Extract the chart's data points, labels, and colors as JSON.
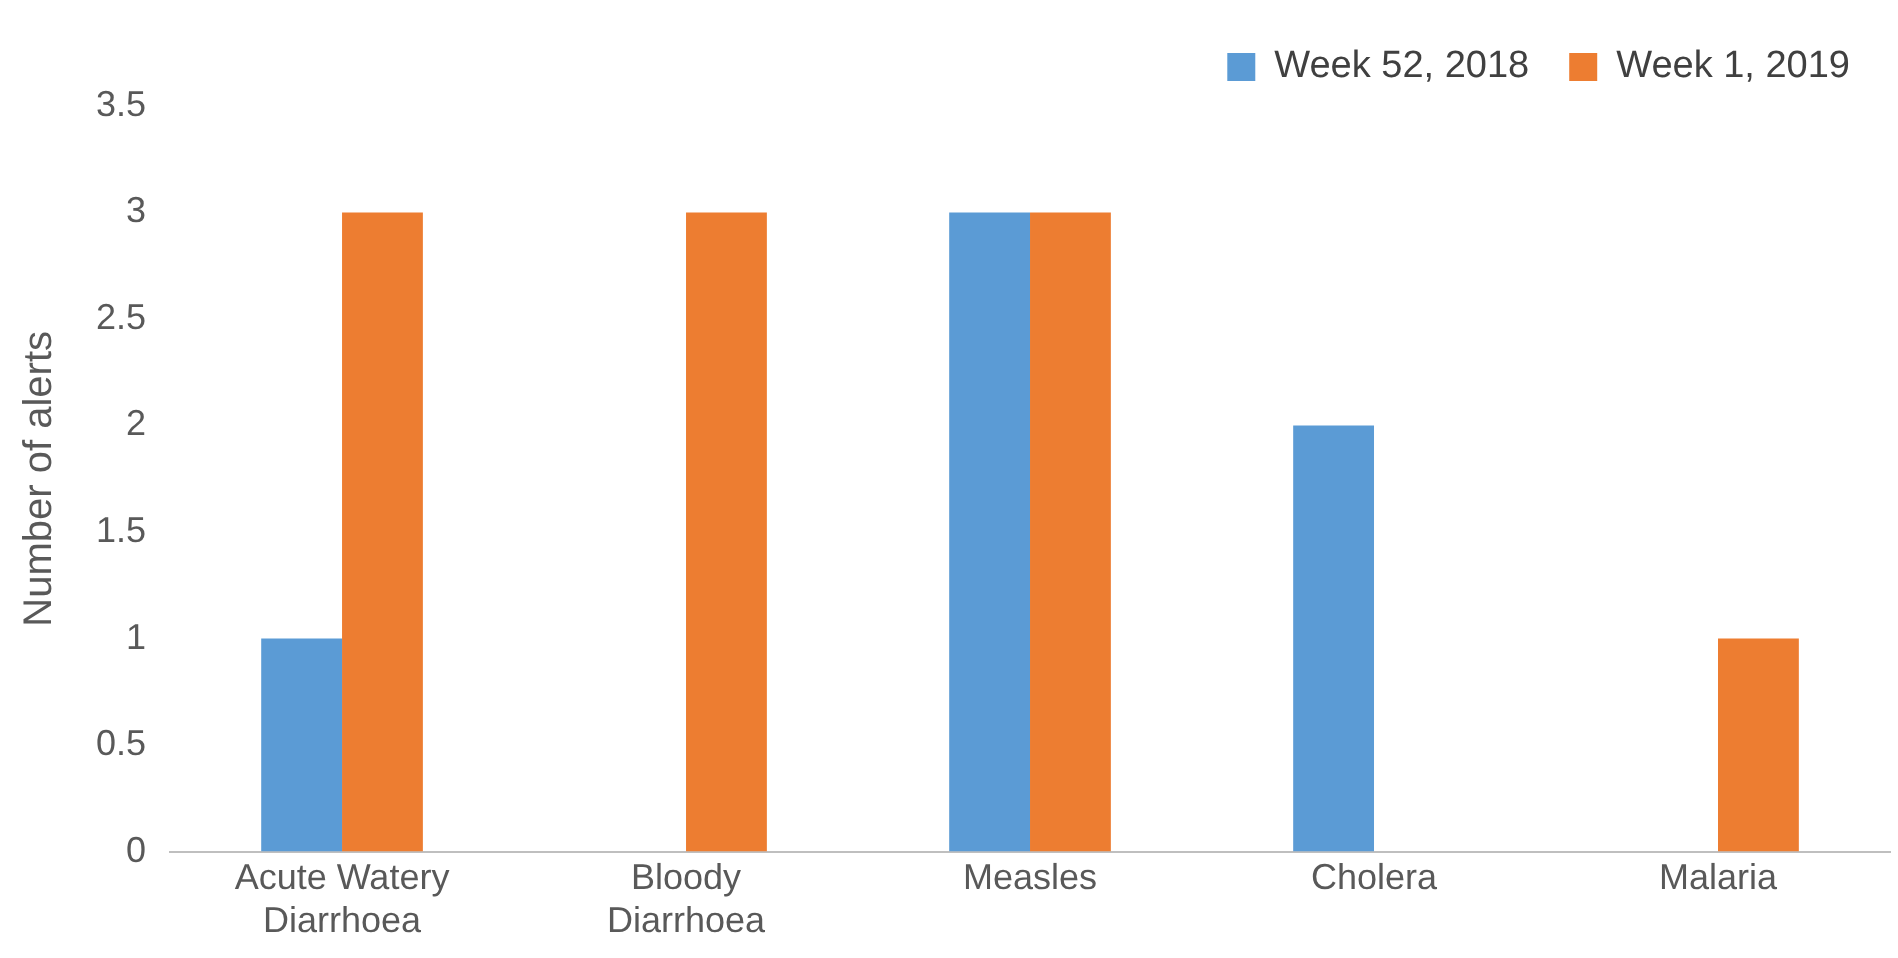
{
  "chart_data": {
    "type": "bar",
    "ylabel": "Number of alerts",
    "categories": [
      "Acute Watery Diarrhoea",
      "Bloody Diarrhoea",
      "Measles",
      "Cholera",
      "Malaria"
    ],
    "series": [
      {
        "name": "Week 52, 2018",
        "color": "#5b9bd5",
        "values": [
          1,
          0,
          3,
          2,
          0
        ]
      },
      {
        "name": "Week 1, 2019",
        "color": "#ed7d31",
        "values": [
          3,
          3,
          3,
          0,
          1
        ]
      }
    ],
    "ylim": [
      0,
      3.5
    ],
    "yticks": [
      0,
      0.5,
      1,
      1.5,
      2,
      2.5,
      3,
      3.5
    ],
    "grid": false,
    "legend": "top right"
  }
}
